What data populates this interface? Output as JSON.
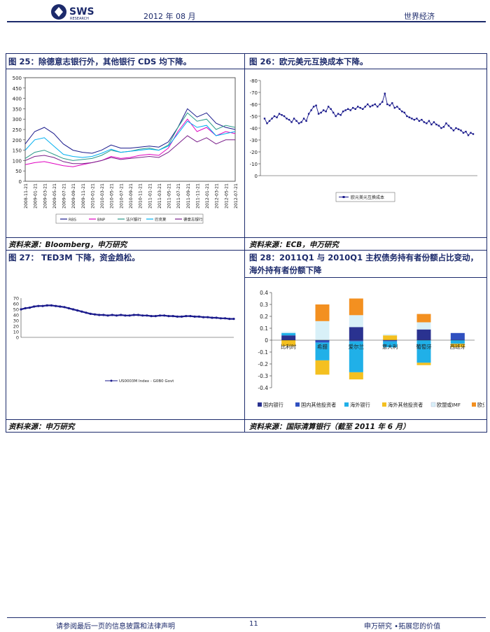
{
  "header": {
    "logo_text": "SWS",
    "logo_sub": "RESEARCH",
    "date": "2012 年 08 月",
    "section": "世界经济"
  },
  "fig25": {
    "title": "图 25：除德意志银行外，其他银行 CDS 均下降。",
    "source": "资料来源：Bloomberg，申万研究",
    "chart_data": {
      "type": "line",
      "ylim": [
        0,
        500
      ],
      "yticks": [
        "500",
        "450",
        "400",
        "350",
        "300",
        "250",
        "200",
        "150",
        "100",
        "50",
        "0"
      ],
      "xticks": [
        "2008-11-21",
        "2009-01-21",
        "2009-03-21",
        "2009-05-21",
        "2009-07-21",
        "2009-09-21",
        "2009-11-21",
        "2010-01-21",
        "2010-03-21",
        "2010-05-21",
        "2010-07-21",
        "2010-09-21",
        "2010-11-21",
        "2011-01-21",
        "2011-03-21",
        "2011-05-21",
        "2011-07-21",
        "2011-09-21",
        "2011-11-21",
        "2012-01-21",
        "2012-03-21",
        "2012-05-21",
        "2012-07-21"
      ],
      "legend": [
        "RBS",
        "BNP",
        "法兴银行",
        "巴克莱",
        "德意志银行"
      ],
      "colors": [
        "#1a1a8c",
        "#e000c0",
        "#2a9a8a",
        "#00b0f0",
        "#7a1f8a"
      ],
      "series": [
        {
          "name": "RBS",
          "values": [
            180,
            240,
            260,
            230,
            180,
            150,
            140,
            135,
            150,
            175,
            160,
            160,
            165,
            170,
            165,
            190,
            260,
            350,
            310,
            330,
            280,
            260,
            250
          ]
        },
        {
          "name": "BNP",
          "values": [
            80,
            90,
            95,
            85,
            75,
            70,
            80,
            90,
            100,
            120,
            110,
            115,
            125,
            130,
            125,
            160,
            240,
            300,
            240,
            260,
            220,
            240,
            230
          ]
        },
        {
          "name": "法兴银行",
          "values": [
            110,
            140,
            150,
            130,
            110,
            100,
            105,
            110,
            125,
            150,
            140,
            145,
            155,
            160,
            150,
            175,
            260,
            330,
            290,
            300,
            250,
            270,
            260
          ]
        },
        {
          "name": "巴克莱",
          "values": [
            150,
            200,
            210,
            170,
            130,
            120,
            115,
            120,
            135,
            155,
            140,
            145,
            150,
            155,
            150,
            170,
            230,
            290,
            260,
            270,
            220,
            230,
            240
          ]
        },
        {
          "name": "德意志银行",
          "values": [
            100,
            120,
            125,
            115,
            95,
            85,
            85,
            90,
            100,
            115,
            105,
            110,
            115,
            120,
            115,
            140,
            180,
            220,
            190,
            210,
            180,
            200,
            200
          ]
        }
      ]
    }
  },
  "fig26": {
    "title": "图 26：欧元美元互换成本下降。",
    "source": "资料来源：ECB，申万研究",
    "chart_data": {
      "type": "line",
      "ylim": [
        0,
        -80
      ],
      "yticks": [
        "-80",
        "-70",
        "-60",
        "-50",
        "-40",
        "-30",
        "-20",
        "-10",
        "0"
      ],
      "legend": [
        "欧元美元互换成本"
      ],
      "colors": [
        "#1a1a8c"
      ],
      "series": [
        {
          "name": "欧元美元互换成本",
          "values": [
            -48,
            -44,
            -46,
            -48,
            -50,
            -49,
            -52,
            -51,
            -50,
            -48,
            -47,
            -45,
            -48,
            -46,
            -44,
            -45,
            -48,
            -46,
            -52,
            -55,
            -58,
            -59,
            -52,
            -53,
            -55,
            -54,
            -58,
            -56,
            -53,
            -50,
            -52,
            -51,
            -54,
            -55,
            -56,
            -55,
            -57,
            -56,
            -58,
            -57,
            -56,
            -58,
            -60,
            -58,
            -59,
            -60,
            -58,
            -60,
            -62,
            -69,
            -60,
            -59,
            -61,
            -57,
            -58,
            -56,
            -54,
            -53,
            -50,
            -49,
            -48,
            -47,
            -48,
            -46,
            -47,
            -45,
            -44,
            -46,
            -43,
            -45,
            -43,
            -42,
            -40,
            -41,
            -44,
            -42,
            -40,
            -38,
            -40,
            -39,
            -38,
            -36,
            -37,
            -34,
            -36,
            -35
          ]
        }
      ]
    }
  },
  "fig27": {
    "title": "图 27： TED3M 下降，资金趋松。",
    "source": "资料来源：申万研究",
    "chart_data": {
      "type": "line",
      "ylim": [
        0,
        70
      ],
      "yticks": [
        "70",
        "60",
        "50",
        "40",
        "30",
        "20",
        "10",
        "0"
      ],
      "legend": [
        "US0003M Index - G0B0 Govt"
      ],
      "colors": [
        "#1a1a8c"
      ],
      "series": [
        {
          "name": "US0003M Index - G0B0 Govt",
          "values": [
            50,
            52,
            53,
            55,
            56,
            56,
            57,
            57,
            56,
            55,
            54,
            52,
            50,
            48,
            46,
            44,
            42,
            41,
            40,
            40,
            39,
            40,
            39,
            40,
            39,
            39,
            40,
            40,
            39,
            39,
            38,
            38,
            39,
            39,
            38,
            38,
            37,
            37,
            38,
            38,
            37,
            37,
            36,
            36,
            35,
            35,
            34,
            34,
            33,
            33
          ]
        }
      ]
    }
  },
  "fig28": {
    "title_line1": "图 28：2011Q1 与 2010Q1 主权债务持有者份额占比变动，",
    "title_line2": "海外持有者份额下降",
    "source": "资料来源：国际清算银行（截至 2011 年 6 月）",
    "chart_data": {
      "type": "bar",
      "ylim": [
        -0.4,
        0.4
      ],
      "yticks": [
        "0.4",
        "0.3",
        "0.2",
        "0.1",
        "0",
        "-0.1",
        "-0.2",
        "-0.3",
        "-0.4"
      ],
      "categories": [
        "比利时",
        "希腊",
        "爱尔兰",
        "意大利",
        "葡萄牙",
        "西班牙"
      ],
      "legend": [
        "国内银行",
        "国内其他投资者",
        "海外银行",
        "海外其他投资者",
        "欧盟或IMF",
        "欧央行"
      ],
      "colors": [
        "#2a3290",
        "#3050c0",
        "#20b0e8",
        "#f4c020",
        "#d8f0f8",
        "#f39020"
      ],
      "series": [
        {
          "name": "国内银行",
          "values": [
            0.04,
            0.0,
            0.11,
            0.0,
            0.09,
            0.0
          ]
        },
        {
          "name": "国内其他投资者",
          "values": [
            0.0,
            -0.02,
            -0.01,
            -0.01,
            0.0,
            0.06
          ]
        },
        {
          "name": "海外银行",
          "values": [
            0.02,
            -0.15,
            -0.26,
            -0.05,
            -0.19,
            -0.03
          ]
        },
        {
          "name": "海外其他投资者",
          "values": [
            -0.05,
            -0.12,
            -0.06,
            0.04,
            -0.02,
            -0.03
          ]
        },
        {
          "name": "欧盟或IMF",
          "values": [
            0.01,
            0.16,
            0.1,
            0.01,
            0.06,
            0.0
          ]
        },
        {
          "name": "欧央行",
          "values": [
            0.0,
            0.14,
            0.14,
            0.0,
            0.07,
            0.0
          ]
        }
      ]
    }
  },
  "footer": {
    "disclaimer": "请参阅最后一页的信息披露和法律声明",
    "page": "11",
    "brand": "申万研究 •拓展您的价值"
  }
}
